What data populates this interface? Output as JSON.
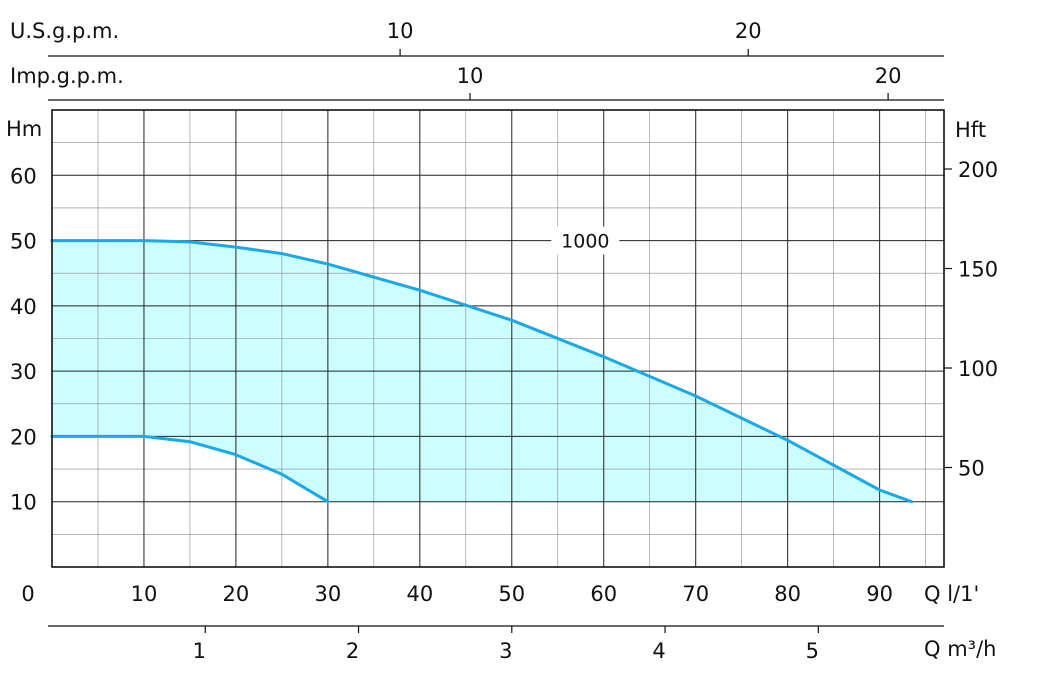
{
  "chart_data": {
    "type": "area",
    "title": "",
    "x_axis_bottom": {
      "label": "Q l/1'",
      "range": [
        0,
        97
      ],
      "ticks": [
        0,
        10,
        20,
        30,
        40,
        50,
        60,
        70,
        80,
        90
      ],
      "tick_labels": [
        "0",
        "10",
        "20",
        "30",
        "40",
        "50",
        "60",
        "70",
        "80",
        "90"
      ]
    },
    "x_axis_m3h": {
      "label": "Q m³/h",
      "ticks": [
        1,
        2,
        3,
        4,
        5
      ],
      "tick_labels": [
        "1",
        "2",
        "3",
        "4",
        "5"
      ]
    },
    "x_axis_us_gpm": {
      "label": "U.S.g.p.m.",
      "ticks": [
        10,
        20
      ],
      "tick_labels": [
        "10",
        "20"
      ]
    },
    "x_axis_imp_gpm": {
      "label": "Imp.g.p.m.",
      "ticks": [
        10,
        20
      ],
      "tick_labels": [
        "10",
        "20"
      ]
    },
    "y_axis_left": {
      "label": "Hm",
      "range": [
        0,
        70
      ],
      "ticks": [
        10,
        20,
        30,
        40,
        50,
        60
      ],
      "tick_labels": [
        "10",
        "20",
        "30",
        "40",
        "50",
        "60"
      ]
    },
    "y_axis_right": {
      "label": "Hft",
      "ticks": [
        50,
        100,
        150,
        200
      ],
      "tick_labels": [
        "50",
        "100",
        "150",
        "200"
      ]
    },
    "grid": true,
    "fill_color": "#ccfdff",
    "line_color": "#1ba8e6",
    "series": [
      {
        "name": "1000",
        "role": "upper",
        "x": [
          0,
          10,
          15,
          20,
          25,
          30,
          40,
          50,
          60,
          70,
          80,
          90,
          93.5
        ],
        "y": [
          50,
          50,
          49.8,
          49,
          48,
          46.4,
          42.4,
          37.8,
          32.2,
          26.2,
          19.4,
          11.8,
          10
        ]
      },
      {
        "role": "lower",
        "x": [
          0,
          10,
          15,
          20,
          25,
          30
        ],
        "y": [
          20,
          20,
          19.2,
          17.2,
          14.2,
          10
        ]
      }
    ],
    "curve_labels": [
      {
        "text": "1000",
        "x": 58,
        "y": 50
      }
    ]
  }
}
